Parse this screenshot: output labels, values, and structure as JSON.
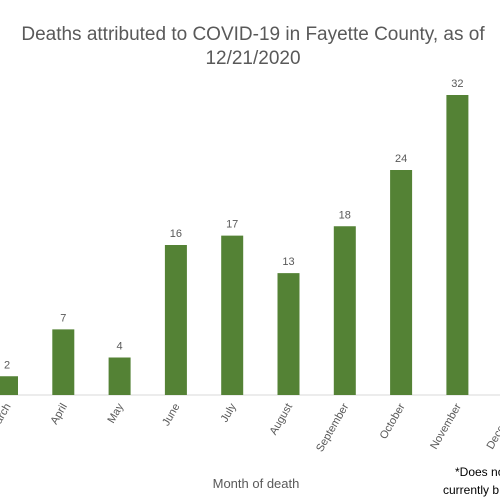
{
  "chart_data": {
    "type": "bar",
    "title": [
      "Deaths attributed to COVID-19 in Fayette County, as of",
      "12/21/2020"
    ],
    "categories": [
      "March",
      "April",
      "May",
      "June",
      "July",
      "August",
      "September",
      "October",
      "November",
      "December"
    ],
    "values": [
      2,
      7,
      4,
      16,
      17,
      13,
      18,
      24,
      32,
      null
    ],
    "color": "#548235",
    "x_label": "Month of death",
    "footnote": [
      "*Does no",
      "currently b"
    ]
  }
}
